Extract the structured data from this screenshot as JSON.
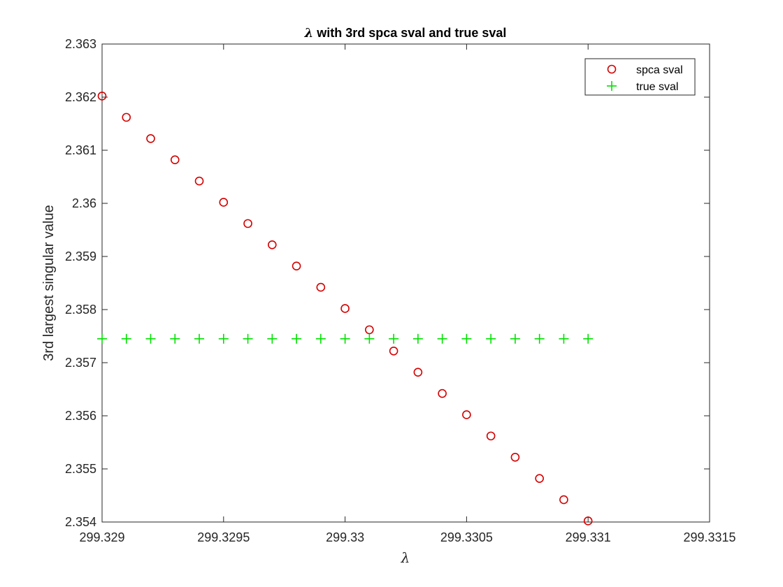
{
  "chart_data": {
    "type": "scatter",
    "title_symbol": "λ",
    "title_rest": " with 3rd spca sval and true sval",
    "xlabel": "λ",
    "ylabel": "3rd largest singular value",
    "xlim": [
      299.329,
      299.3315
    ],
    "ylim": [
      2.354,
      2.363
    ],
    "xticks": [
      299.329,
      299.3295,
      299.33,
      299.3305,
      299.331,
      299.3315
    ],
    "xtick_labels": [
      "299.329",
      "299.3295",
      "299.33",
      "299.3305",
      "299.331",
      "299.3315"
    ],
    "yticks": [
      2.354,
      2.355,
      2.356,
      2.357,
      2.358,
      2.359,
      2.36,
      2.361,
      2.362,
      2.363
    ],
    "ytick_labels": [
      "2.354",
      "2.355",
      "2.356",
      "2.357",
      "2.358",
      "2.359",
      "2.36",
      "2.361",
      "2.362",
      "2.363"
    ],
    "grid": false,
    "legend_position": "top-right",
    "x": [
      299.329,
      299.3291,
      299.3292,
      299.3293,
      299.3294,
      299.3295,
      299.3296,
      299.3297,
      299.3298,
      299.3299,
      299.33,
      299.3301,
      299.3302,
      299.3303,
      299.3304,
      299.3305,
      299.3306,
      299.3307,
      299.3308,
      299.3309,
      299.331
    ],
    "series": [
      {
        "name": "spca sval",
        "marker": "circle",
        "color": "#d40000",
        "values": [
          2.36202,
          2.36162,
          2.36122,
          2.36082,
          2.36042,
          2.36002,
          2.35962,
          2.35922,
          2.35882,
          2.35842,
          2.35802,
          2.35762,
          2.35722,
          2.35682,
          2.35642,
          2.35602,
          2.35562,
          2.35522,
          2.35482,
          2.35442,
          2.35402
        ]
      },
      {
        "name": "true sval",
        "marker": "plus",
        "color": "#00e000",
        "values": [
          2.35745,
          2.35745,
          2.35745,
          2.35745,
          2.35745,
          2.35745,
          2.35745,
          2.35745,
          2.35745,
          2.35745,
          2.35745,
          2.35745,
          2.35745,
          2.35745,
          2.35745,
          2.35745,
          2.35745,
          2.35745,
          2.35745,
          2.35745,
          2.35745
        ]
      }
    ]
  }
}
